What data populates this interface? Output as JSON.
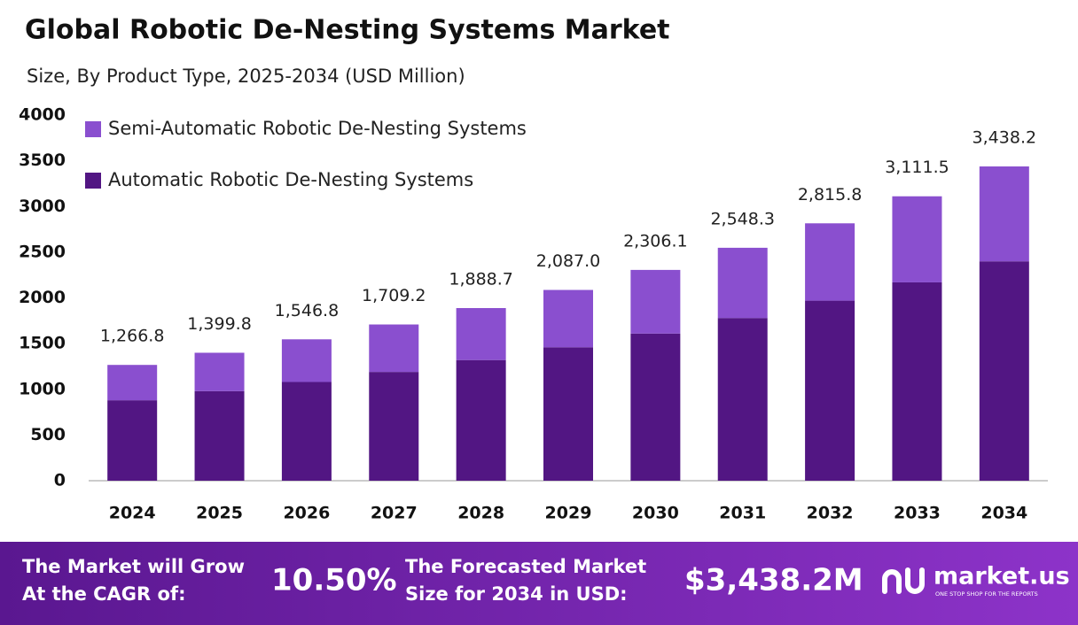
{
  "chart_data": {
    "type": "stacked_bar",
    "title": "Global Robotic De-Nesting Systems Market",
    "subtitle": "Size, By Product Type, 2025-2034 (USD Million)",
    "categories": [
      "2024",
      "2025",
      "2026",
      "2027",
      "2028",
      "2029",
      "2030",
      "2031",
      "2032",
      "2033",
      "2034"
    ],
    "series": [
      {
        "name": "Automatic Robotic De-Nesting Systems",
        "color": "#521683",
        "values": [
          880,
          980,
          1080,
          1190,
          1320,
          1460,
          1610,
          1780,
          1970,
          2170,
          2400
        ]
      },
      {
        "name": "Semi-Automatic Robotic De-Nesting Systems",
        "color": "#8a4fcf",
        "values": [
          386.8,
          419.8,
          466.8,
          519.2,
          568.7,
          627,
          696.1,
          768.3,
          845.8,
          941.5,
          1038.2
        ]
      }
    ],
    "totals": [
      1266.8,
      1399.8,
      1546.8,
      1709.2,
      1888.7,
      2087,
      2306.1,
      2548.3,
      2815.8,
      3111.5,
      3438.2
    ],
    "total_labels": [
      "1,266.8",
      "1,399.8",
      "1,546.8",
      "1,709.2",
      "1,888.7",
      "2,087.0",
      "2,306.1",
      "2,548.3",
      "2,815.8",
      "3,111.5",
      "3,438.2"
    ],
    "ylim": [
      0,
      4000
    ],
    "yticks": [
      0,
      500,
      1000,
      1500,
      2000,
      2500,
      3000,
      3500,
      4000
    ],
    "grid": false,
    "legend": "top-left"
  },
  "footer": {
    "cagr_text": [
      "The Market will Grow",
      "At the CAGR of:"
    ],
    "cagr_value": "10.50%",
    "forecast_text": [
      "The Forecasted Market",
      "Size for 2034 in USD:"
    ],
    "forecast_value": "$3,438.2M",
    "brand": "market.us",
    "tagline": "ONE STOP SHOP FOR THE REPORTS"
  }
}
